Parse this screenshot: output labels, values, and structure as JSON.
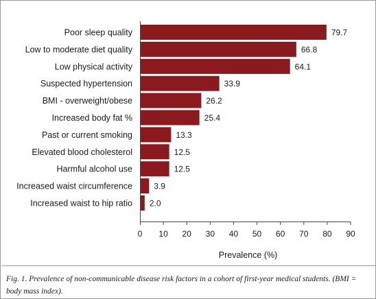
{
  "chart_data": {
    "type": "bar",
    "orientation": "horizontal",
    "categories": [
      "Poor sleep quality",
      "Low to moderate diet quality",
      "Low physical activity",
      "Suspected hypertension",
      "BMI - overweight/obese",
      "Increased body fat %",
      "Past or current smoking",
      "Elevated blood cholesterol",
      "Harmful alcohol use",
      "Increased waist circumference",
      "Increased waist to hip ratio"
    ],
    "values": [
      79.7,
      66.8,
      64.1,
      33.9,
      26.2,
      25.4,
      13.3,
      12.5,
      12.5,
      3.9,
      2.0
    ],
    "value_labels": [
      "79.7",
      "66.8",
      "64.1",
      "33.9",
      "26.2",
      "25.4",
      "13.3",
      "12.5",
      "12.5",
      "3.9",
      "2.0"
    ],
    "xlabel": "Prevalence (%)",
    "ylabel": "",
    "xlim": [
      0,
      90
    ],
    "xticks": [
      0,
      10,
      20,
      30,
      40,
      50,
      60,
      70,
      80,
      90
    ],
    "grid": false,
    "legend": "none",
    "bar_color": "#8b1a1f"
  },
  "caption": "Fig. 1. Prevalence of non-communicable disease risk factors in a cohort of first-year medical students. (BMI = body mass index)."
}
